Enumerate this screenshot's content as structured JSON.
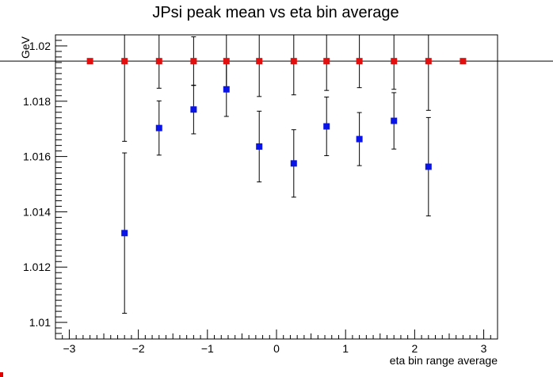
{
  "chart_data": {
    "type": "scatter",
    "title": "JPsi peak mean vs eta bin average",
    "xlabel": "eta bin range average",
    "ylabel": "GeV",
    "xlim": [
      -3.2,
      3.2
    ],
    "ylim": [
      1.0094,
      1.0204
    ],
    "x_ticks": [
      -3,
      -2,
      -1,
      0,
      1,
      2,
      3
    ],
    "x_tick_labels": [
      "−3",
      "−2",
      "−1",
      "0",
      "1",
      "2",
      "3"
    ],
    "y_ticks": [
      1.01,
      1.012,
      1.014,
      1.016,
      1.018,
      1.02
    ],
    "y_tick_labels": [
      "1.01",
      "1.012",
      "1.014",
      "1.016",
      "1.018",
      "1.02"
    ],
    "reference_line_y": 1.01945,
    "grid": false,
    "series": [
      {
        "color": "#0a14e6",
        "marker": "square",
        "points": [
          {
            "x": -2.2,
            "y": 1.01323,
            "err": 0.0029
          },
          {
            "x": -1.7,
            "y": 1.01703,
            "err": 0.00098
          },
          {
            "x": -1.2,
            "y": 1.0177,
            "err": 0.00088
          },
          {
            "x": -0.725,
            "y": 1.01843,
            "err": 0.00098
          },
          {
            "x": -0.25,
            "y": 1.01636,
            "err": 0.00128
          },
          {
            "x": 0.25,
            "y": 1.01575,
            "err": 0.00122
          },
          {
            "x": 0.725,
            "y": 1.01709,
            "err": 0.00106
          },
          {
            "x": 1.2,
            "y": 1.01663,
            "err": 0.00096
          },
          {
            "x": 1.7,
            "y": 1.01729,
            "err": 0.00102
          },
          {
            "x": 2.2,
            "y": 1.01563,
            "err": 0.00178
          }
        ]
      },
      {
        "color": "#e01010",
        "marker": "square",
        "points": [
          {
            "x": -2.7,
            "y": 1.01945,
            "err": 0
          },
          {
            "x": -2.2,
            "y": 1.01945,
            "err": 0.0029
          },
          {
            "x": -1.7,
            "y": 1.01945,
            "err": 0.00098
          },
          {
            "x": -1.2,
            "y": 1.01945,
            "err": 0.00088
          },
          {
            "x": -0.725,
            "y": 1.01945,
            "err": 0.00098
          },
          {
            "x": -0.25,
            "y": 1.01945,
            "err": 0.00128
          },
          {
            "x": 0.25,
            "y": 1.01945,
            "err": 0.00122
          },
          {
            "x": 0.725,
            "y": 1.01945,
            "err": 0.00106
          },
          {
            "x": 1.2,
            "y": 1.01945,
            "err": 0.00096
          },
          {
            "x": 1.7,
            "y": 1.01945,
            "err": 0.00102
          },
          {
            "x": 2.2,
            "y": 1.01945,
            "err": 0.00178
          },
          {
            "x": 2.7,
            "y": 1.01945,
            "err": 0
          }
        ]
      }
    ]
  }
}
